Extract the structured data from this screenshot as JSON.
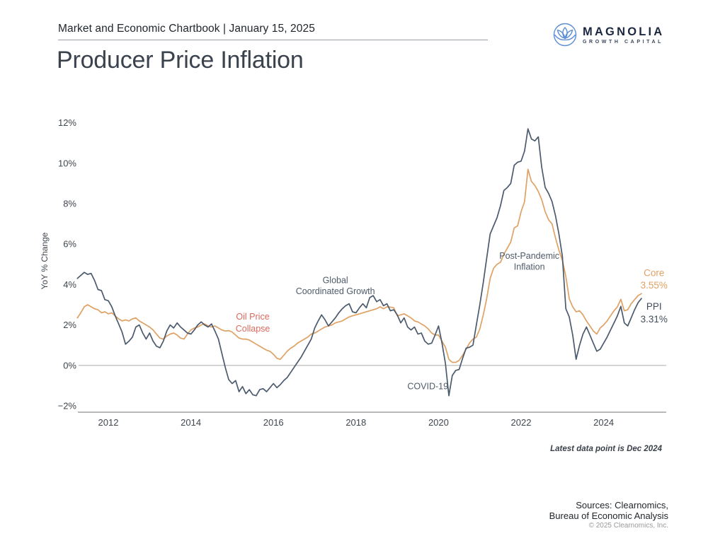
{
  "header": {
    "chartbook_title": "Market and Economic Chartbook | January 15, 2025"
  },
  "logo": {
    "name": "MAGNOLIA",
    "tagline": "GROWTH CAPITAL",
    "icon": "magnolia-flower-icon",
    "icon_color": "#5c8fd6",
    "text_color": "#1c2740"
  },
  "title": "Producer Price Inflation",
  "footer": {
    "note": "Latest data point is Dec 2024",
    "sources_line1": "Sources: Clearnomics,",
    "sources_line2": "Bureau of Economic Analysis",
    "copyright": "© 2025 Clearnomics, Inc."
  },
  "chart_data": {
    "type": "line",
    "title": "Producer Price Inflation",
    "xlabel": "",
    "ylabel": "YoY % Change",
    "ylim": [
      -2.4,
      12.6
    ],
    "xlim": [
      2011.25,
      2025.5
    ],
    "yticks": [
      -2,
      0,
      2,
      4,
      6,
      8,
      10,
      12
    ],
    "ytick_suffix": "%",
    "xticks": [
      2012,
      2014,
      2016,
      2018,
      2020,
      2022,
      2024
    ],
    "grid": false,
    "zero_line": true,
    "legend_position": "end-of-line-labels",
    "x_start": {
      "year": 2011,
      "month": 4
    },
    "x_end": {
      "year": 2024,
      "month": 12
    },
    "frequency": "monthly",
    "series": [
      {
        "name": "PPI",
        "color": "#4b5a6d",
        "latest_value": 3.31,
        "values": [
          4.3,
          4.45,
          4.6,
          4.5,
          4.55,
          4.2,
          3.75,
          3.7,
          3.25,
          3.2,
          2.9,
          2.45,
          2.05,
          1.65,
          1.05,
          1.2,
          1.4,
          1.9,
          2.0,
          1.6,
          1.3,
          1.6,
          1.2,
          0.95,
          0.87,
          1.2,
          1.7,
          2.0,
          1.85,
          2.1,
          1.9,
          1.75,
          1.6,
          1.55,
          1.75,
          2.0,
          2.15,
          2.0,
          1.9,
          2.05,
          1.7,
          1.3,
          0.6,
          -0.1,
          -0.7,
          -0.9,
          -0.75,
          -1.3,
          -1.05,
          -1.4,
          -1.2,
          -1.45,
          -1.5,
          -1.2,
          -1.15,
          -1.3,
          -1.1,
          -0.9,
          -1.1,
          -0.95,
          -0.75,
          -0.6,
          -0.35,
          -0.1,
          0.15,
          0.4,
          0.7,
          1.0,
          1.3,
          1.85,
          2.2,
          2.5,
          2.25,
          1.95,
          2.15,
          2.35,
          2.6,
          2.8,
          2.95,
          3.05,
          2.65,
          2.6,
          2.85,
          3.05,
          2.85,
          3.35,
          3.45,
          3.15,
          3.25,
          2.95,
          3.05,
          2.7,
          2.75,
          2.5,
          2.1,
          2.35,
          1.9,
          1.75,
          1.9,
          1.55,
          1.6,
          1.2,
          1.05,
          1.1,
          1.5,
          1.95,
          1.1,
          0.1,
          -1.5,
          -0.5,
          -0.25,
          -0.2,
          0.35,
          0.85,
          0.9,
          1.0,
          2.0,
          3.0,
          4.1,
          5.3,
          6.5,
          6.9,
          7.3,
          7.9,
          8.65,
          8.8,
          9.0,
          9.9,
          10.05,
          10.1,
          10.6,
          11.7,
          11.2,
          11.1,
          11.3,
          9.8,
          8.8,
          8.5,
          8.1,
          7.4,
          6.5,
          5.4,
          2.8,
          2.4,
          1.5,
          0.3,
          1.0,
          1.55,
          1.9,
          1.5,
          1.1,
          0.7,
          0.8,
          1.1,
          1.4,
          1.75,
          2.1,
          2.45,
          2.92,
          2.1,
          1.95,
          2.35,
          2.75,
          3.1,
          3.31
        ]
      },
      {
        "name": "Core",
        "color": "#dfa164",
        "latest_value": 3.55,
        "values": [
          2.35,
          2.6,
          2.9,
          3.0,
          2.9,
          2.8,
          2.75,
          2.6,
          2.65,
          2.55,
          2.6,
          2.45,
          2.3,
          2.2,
          2.25,
          2.2,
          2.3,
          2.35,
          2.2,
          2.1,
          2.0,
          1.9,
          1.75,
          1.55,
          1.35,
          1.3,
          1.45,
          1.55,
          1.6,
          1.5,
          1.35,
          1.3,
          1.55,
          1.75,
          1.85,
          1.9,
          2.0,
          2.05,
          1.95,
          1.9,
          1.95,
          1.85,
          1.75,
          1.7,
          1.72,
          1.65,
          1.5,
          1.35,
          1.3,
          1.3,
          1.25,
          1.15,
          1.05,
          0.95,
          0.85,
          0.75,
          0.7,
          0.55,
          0.35,
          0.3,
          0.5,
          0.7,
          0.85,
          0.95,
          1.1,
          1.2,
          1.3,
          1.4,
          1.55,
          1.6,
          1.7,
          1.8,
          1.9,
          1.95,
          2.0,
          2.1,
          2.15,
          2.2,
          2.3,
          2.4,
          2.45,
          2.5,
          2.55,
          2.6,
          2.65,
          2.7,
          2.75,
          2.8,
          2.9,
          2.8,
          2.9,
          2.88,
          2.85,
          2.45,
          2.5,
          2.55,
          2.45,
          2.35,
          2.2,
          2.15,
          2.05,
          1.95,
          1.8,
          1.6,
          1.5,
          1.5,
          1.2,
          0.9,
          0.3,
          0.15,
          0.15,
          0.25,
          0.5,
          0.8,
          1.1,
          1.3,
          1.4,
          1.8,
          2.5,
          3.3,
          4.3,
          4.8,
          5.0,
          5.1,
          5.5,
          5.8,
          6.1,
          6.8,
          6.9,
          7.6,
          8.1,
          9.7,
          9.1,
          8.9,
          8.6,
          8.2,
          7.6,
          7.2,
          7.0,
          6.3,
          5.7,
          5.2,
          4.4,
          3.3,
          2.9,
          2.65,
          2.7,
          2.5,
          2.2,
          1.95,
          1.7,
          1.55,
          1.85,
          2.0,
          2.2,
          2.45,
          2.7,
          2.9,
          3.27,
          2.7,
          2.75,
          3.05,
          3.25,
          3.45,
          3.55
        ]
      }
    ],
    "annotations": [
      {
        "id": "oil-price-collapse",
        "lines": [
          "Oil Price",
          "Collapse"
        ],
        "year": 2015.5,
        "values": [
          2.27,
          1.68
        ],
        "color": "#d96a5e"
      },
      {
        "id": "global-coordinated-growth",
        "lines": [
          "Global",
          "Coordinated Growth"
        ],
        "year": 2017.5,
        "values": [
          4.07,
          3.52
        ],
        "color": "#4f5b69"
      },
      {
        "id": "covid-19",
        "lines": [
          "COVID-19"
        ],
        "year": 2019.74,
        "values": [
          -1.18
        ],
        "color": "#4f5b69"
      },
      {
        "id": "post-pandemic-inflation",
        "lines": [
          "Post-Pandemic",
          "Inflation"
        ],
        "year": 2022.2,
        "values": [
          5.27,
          4.73
        ],
        "color": "#4f5b69"
      }
    ],
    "end_labels": [
      {
        "id": "core",
        "lines": [
          "Core",
          "3.55%"
        ],
        "year": 2025.22,
        "values": [
          4.42,
          3.8
        ],
        "color": "#dfa164"
      },
      {
        "id": "ppi",
        "lines": [
          "PPI",
          "3.31%"
        ],
        "year": 2025.22,
        "values": [
          2.75,
          2.12
        ],
        "color": "#424e5b"
      }
    ]
  }
}
